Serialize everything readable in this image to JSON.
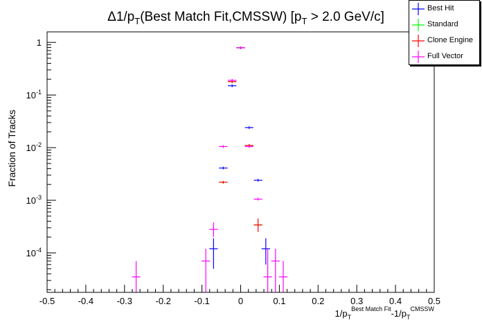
{
  "chart_data": {
    "type": "scatter",
    "title": "Δ1/pT(Best Match Fit,CMSSW) [pT > 2.0 GeV/c]",
    "ylabel": "Fraction of Tracks",
    "xlabel": "1/pT^Best Match Fit - 1/pT^CMSSW",
    "xlim": [
      -0.5,
      0.5
    ],
    "ylim_log10": [
      -4.75,
      0.2
    ],
    "yscale": "log",
    "x_ticks": [
      "-0.5",
      "-0.4",
      "-0.3",
      "-0.2",
      "-0.1",
      "0",
      "0.1",
      "0.2",
      "0.3",
      "0.4",
      "0.5"
    ],
    "y_ticks": [
      "10^-4",
      "10^-3",
      "10^-2",
      "10^-1",
      "1"
    ],
    "legend_position": "top-right",
    "series": [
      {
        "name": "Best Hit",
        "color": "#0000ff",
        "points": [
          {
            "x": -0.07,
            "y": 0.00012,
            "lo": 5e-05,
            "hi": 0.00019
          },
          {
            "x": -0.045,
            "y": 0.0041
          },
          {
            "x": -0.022,
            "y": 0.15
          },
          {
            "x": 0.0,
            "y": 0.79
          },
          {
            "x": 0.022,
            "y": 0.024
          },
          {
            "x": 0.045,
            "y": 0.0024
          },
          {
            "x": 0.065,
            "y": 0.00012,
            "lo": 6e-05,
            "hi": 0.00019
          }
        ]
      },
      {
        "name": "Standard",
        "color": "#00ff00",
        "points": [
          {
            "x": -0.045,
            "y": 0.0022
          },
          {
            "x": -0.022,
            "y": 0.18
          },
          {
            "x": 0.0,
            "y": 0.79
          },
          {
            "x": 0.022,
            "y": 0.011
          },
          {
            "x": 0.045,
            "y": 0.00034
          }
        ]
      },
      {
        "name": "Clone Engine",
        "color": "#ff0000",
        "points": [
          {
            "x": -0.045,
            "y": 0.0022
          },
          {
            "x": -0.022,
            "y": 0.18
          },
          {
            "x": 0.0,
            "y": 0.79
          },
          {
            "x": 0.022,
            "y": 0.011
          },
          {
            "x": 0.045,
            "y": 0.00034,
            "lo": 0.00025,
            "hi": 0.00045
          }
        ]
      },
      {
        "name": "Full Vector",
        "color": "#ff00ff",
        "points": [
          {
            "x": -0.27,
            "y": 3.5e-05,
            "lo": 1.8e-05,
            "hi": 7e-05
          },
          {
            "x": -0.09,
            "y": 7e-05,
            "lo": 1.8e-05,
            "hi": 0.00012
          },
          {
            "x": -0.07,
            "y": 0.00028,
            "lo": 0.0002,
            "hi": 0.00038
          },
          {
            "x": -0.045,
            "y": 0.0105
          },
          {
            "x": -0.022,
            "y": 0.19
          },
          {
            "x": 0.0,
            "y": 0.79
          },
          {
            "x": 0.022,
            "y": 0.0105
          },
          {
            "x": 0.045,
            "y": 0.00105
          },
          {
            "x": 0.07,
            "y": 3.5e-05,
            "lo": 1.8e-05,
            "hi": 0.00012
          },
          {
            "x": 0.09,
            "y": 7e-05,
            "lo": 1.8e-05,
            "hi": 0.00012
          },
          {
            "x": 0.11,
            "y": 3.5e-05,
            "lo": 1.8e-05,
            "hi": 7e-05
          }
        ]
      }
    ]
  }
}
